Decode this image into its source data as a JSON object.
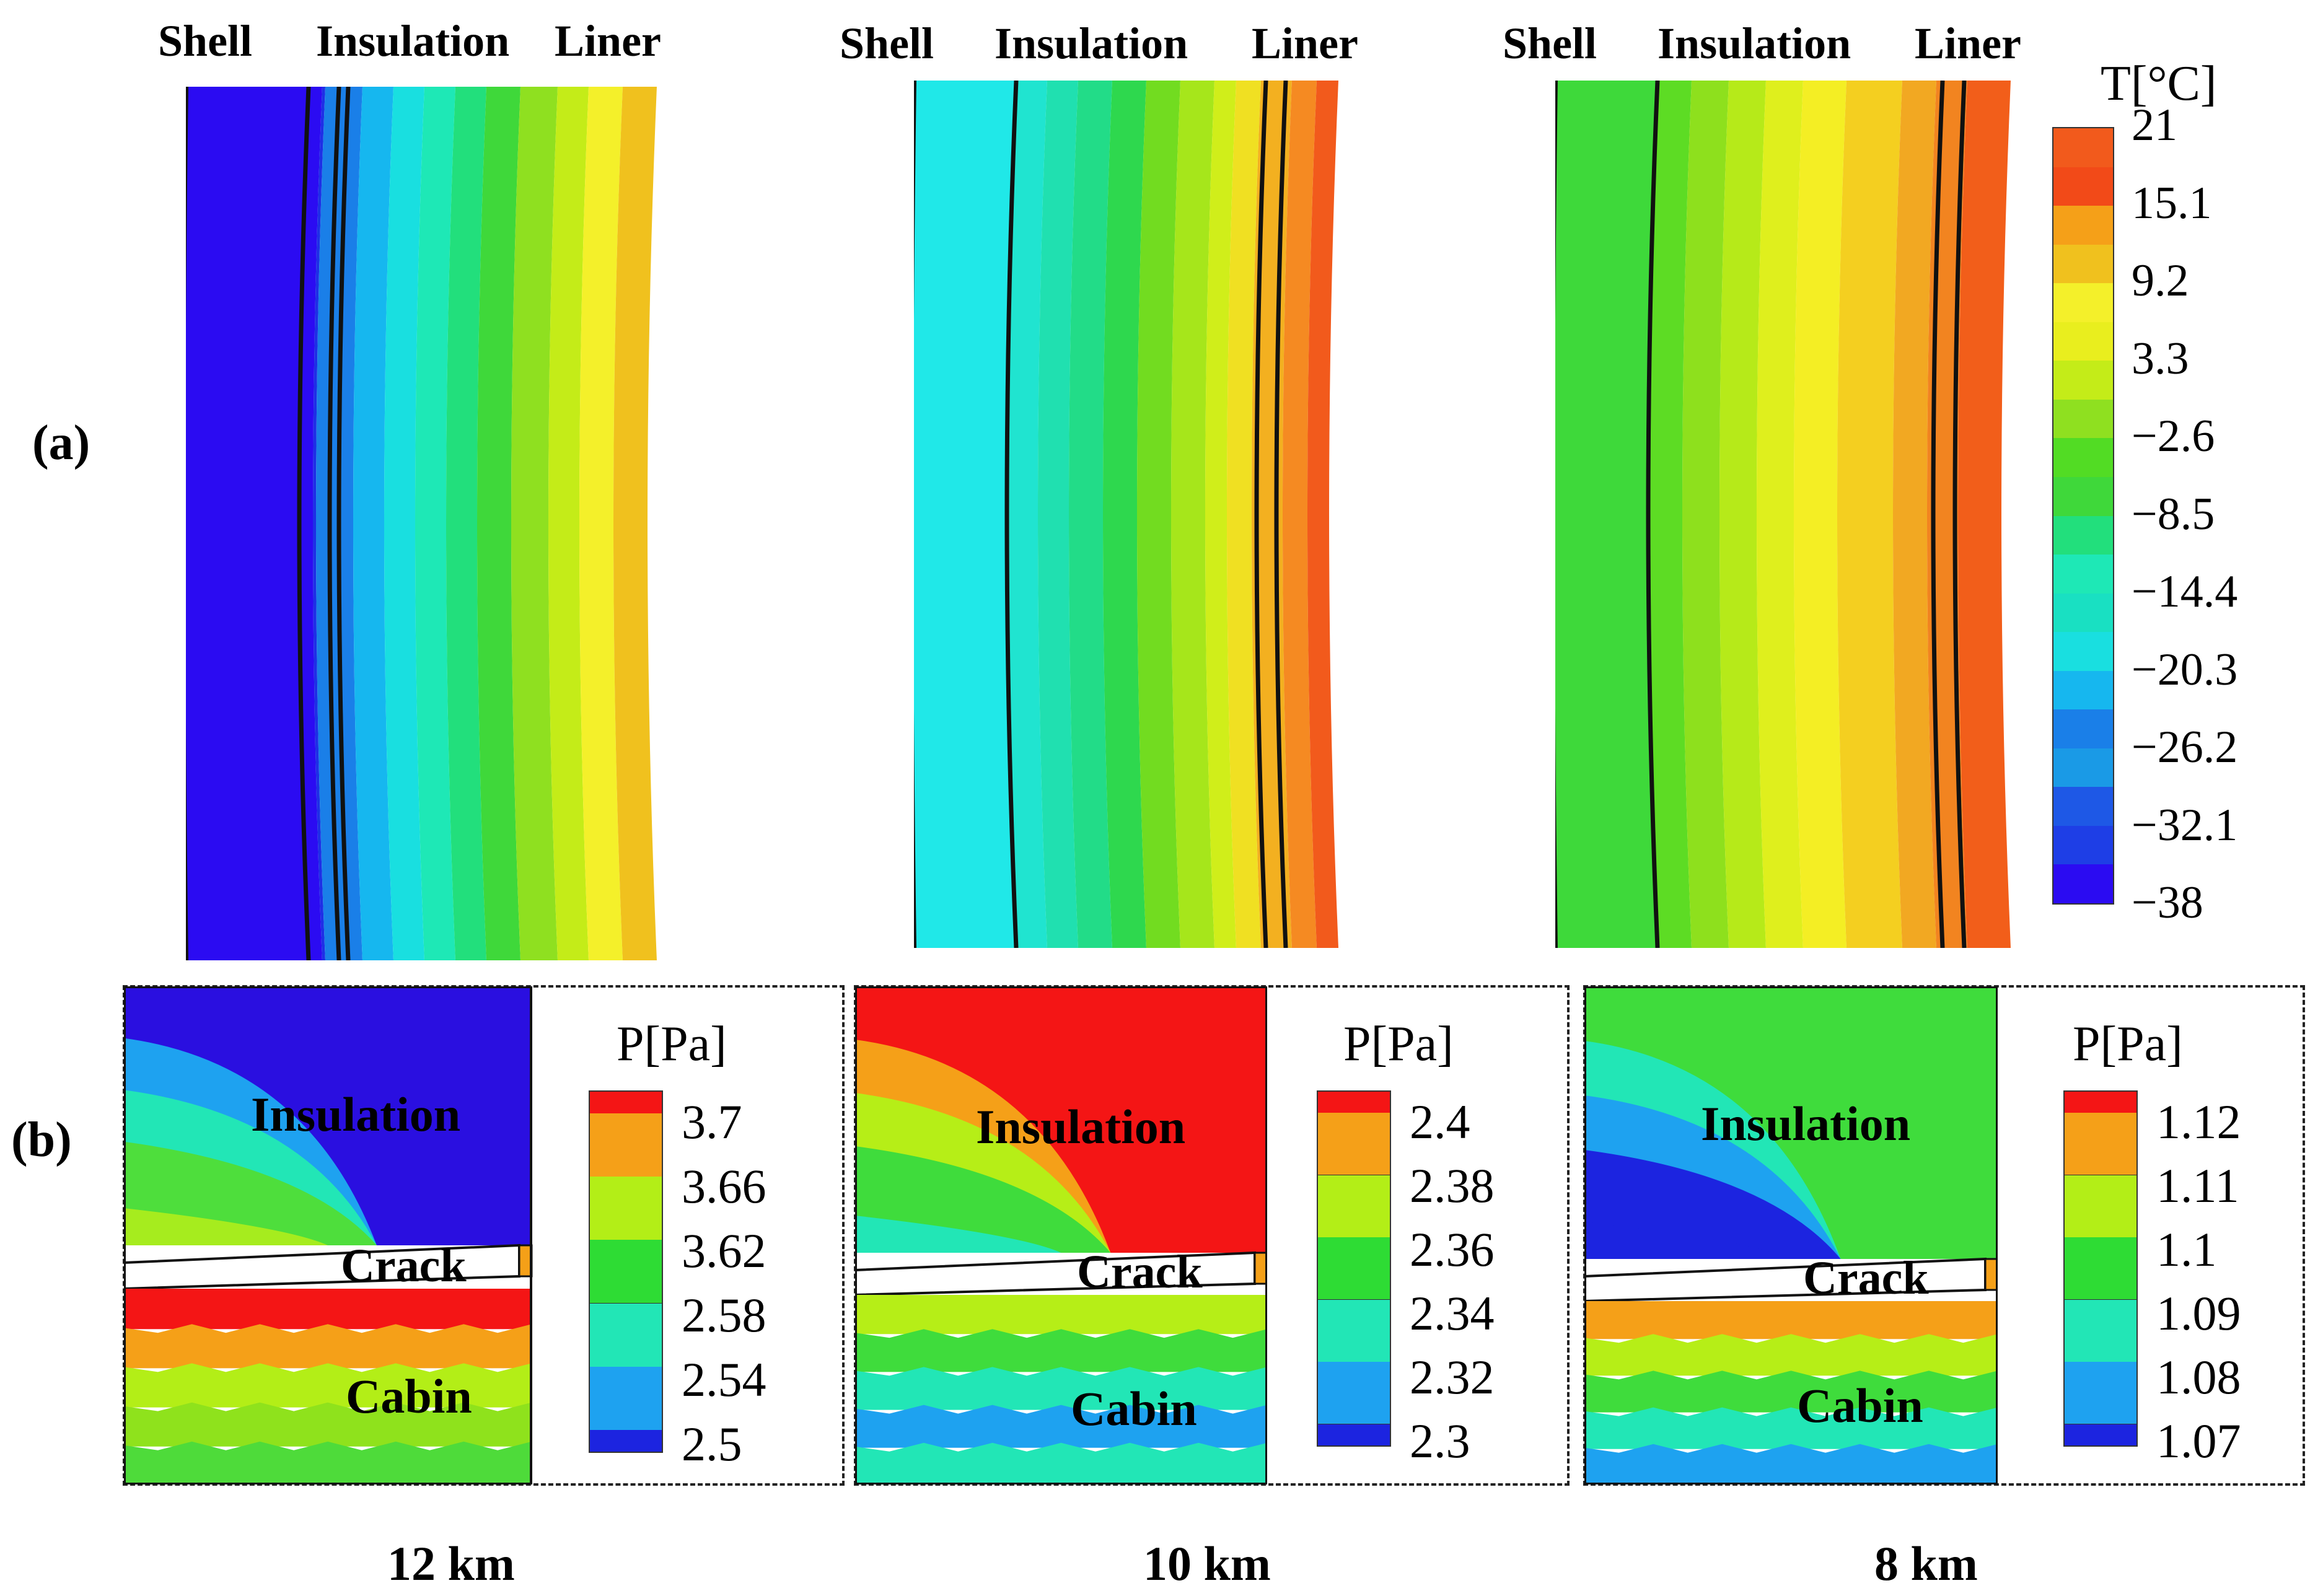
{
  "panel_labels": {
    "a": "(a)",
    "b": "(b)"
  },
  "layer_headers": {
    "shell": "Shell",
    "insulation": "Insulation",
    "liner": "Liner"
  },
  "cases": [
    {
      "altitude": "12 km",
      "temp_band_colors": [
        "#2b0bf2",
        "#1e2fe6",
        "#1a7fe8",
        "#16b7ef",
        "#19dfe0",
        "#1ee8b6",
        "#22df7c",
        "#3fd83a",
        "#8fe020",
        "#c4ec18",
        "#f4f02a",
        "#f0c11e",
        "#f19d20"
      ],
      "pressure": {
        "region_insulation": "Insulation",
        "region_crack": "Crack",
        "region_cabin": "Cabin",
        "insulation_colors": [
          "#2a0fe0",
          "#1ea2f0",
          "#22e6b6",
          "#4ede3c",
          "#a6ec1e"
        ],
        "cabin_colors": [
          "#f41515",
          "#f5a018",
          "#b3ee17",
          "#8fe21c",
          "#4edb3a"
        ]
      }
    },
    {
      "altitude": "10 km",
      "temp_band_colors": [
        "#20e8e8",
        "#20e4d0",
        "#20e0b0",
        "#22dc88",
        "#2ed84e",
        "#72dc20",
        "#a6e61b",
        "#d0ee1a",
        "#f0e022",
        "#f3b020",
        "#f58a22",
        "#f25a1c",
        "#f24a18"
      ],
      "pressure": {
        "region_insulation": "Insulation",
        "region_crack": "Crack",
        "region_cabin": "Cabin",
        "insulation_colors": [
          "#f41515",
          "#f5a018",
          "#b6ee17",
          "#3fdc3c",
          "#22e6b6"
        ],
        "cabin_colors": [
          "#b6ee17",
          "#3fdc3c",
          "#22e6b6",
          "#1ea2f0",
          "#22e6b6"
        ]
      }
    },
    {
      "altitude": "8 km",
      "temp_band_colors": [
        "#3ed93a",
        "#5ddc24",
        "#8ee01d",
        "#b6ea19",
        "#dfef1d",
        "#f4ee24",
        "#f4cf20",
        "#f2a822",
        "#f28420",
        "#f25e1a",
        "#f24e16"
      ],
      "pressure": {
        "region_insulation": "Insulation",
        "region_crack": "Crack",
        "region_cabin": "Cabin",
        "insulation_colors": [
          "#3fdc3c",
          "#22e6b6",
          "#1ea2f0",
          "#1c24e0",
          "#1c24e0"
        ],
        "cabin_colors": [
          "#f5a018",
          "#b6ee17",
          "#3fdc3c",
          "#22e6b6",
          "#1ea2f0"
        ]
      }
    }
  ],
  "temperature_legend": {
    "title": "T[°C]",
    "ticks": [
      "21",
      "15.1",
      "9.2",
      "3.3",
      "−2.6",
      "−8.5",
      "−14.4",
      "−20.3",
      "−26.2",
      "−32.1",
      "−38"
    ],
    "colors": [
      "#f25a1c",
      "#f24a18",
      "#f5a018",
      "#f0c11e",
      "#f4f02a",
      "#e9ee1e",
      "#c4ec18",
      "#8fe020",
      "#52dc24",
      "#3fd83a",
      "#22df7c",
      "#1ee8b6",
      "#19e0c2",
      "#19dfe0",
      "#16b7ef",
      "#1a7fe8",
      "#1a9ae6",
      "#1e58e6",
      "#1e3ee6",
      "#2b0bf2"
    ]
  },
  "pressure_legends": [
    {
      "title": "P[Pa]",
      "ticks": [
        "3.7",
        "3.66",
        "3.62",
        "2.58",
        "2.54",
        "2.5"
      ],
      "colors": [
        "#f41515",
        "#f5a018",
        "#b3ee17",
        "#2edc34",
        "#22e6b6",
        "#1ea2f0",
        "#1c24e0"
      ]
    },
    {
      "title": "P[Pa]",
      "ticks": [
        "2.4",
        "2.38",
        "2.36",
        "2.34",
        "2.32",
        "2.3"
      ],
      "colors": [
        "#f41515",
        "#f5a018",
        "#b3ee17",
        "#2edc34",
        "#22e6b6",
        "#1ea2f0",
        "#1c24e0"
      ]
    },
    {
      "title": "P[Pa]",
      "ticks": [
        "1.12",
        "1.11",
        "1.1",
        "1.09",
        "1.08",
        "1.07"
      ],
      "colors": [
        "#f41515",
        "#f5a018",
        "#b3ee17",
        "#2edc34",
        "#22e6b6",
        "#1ea2f0",
        "#1c24e0"
      ]
    }
  ]
}
